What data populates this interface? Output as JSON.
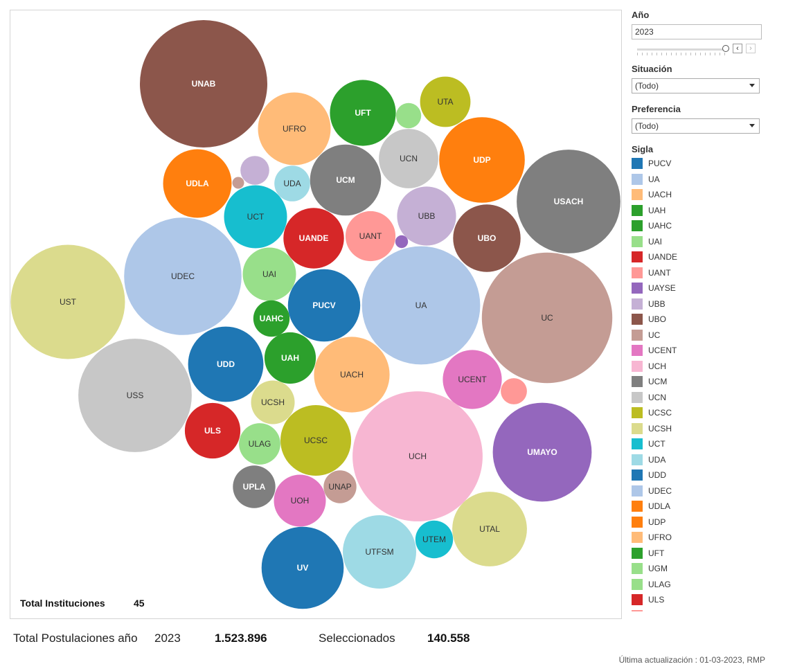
{
  "filters": {
    "year_title": "Año",
    "year_value": "2023",
    "step_prev": "‹",
    "step_next": "›",
    "situacion_title": "Situación",
    "situacion_value": "(Todo)",
    "preferencia_title": "Preferencia",
    "preferencia_value": "(Todo)",
    "sigla_title": "Sigla"
  },
  "legend": [
    {
      "label": "PUCV",
      "color": "#1f77b4"
    },
    {
      "label": "UA",
      "color": "#aec7e8"
    },
    {
      "label": "UACH",
      "color": "#ffbb78"
    },
    {
      "label": "UAH",
      "color": "#2ca02c"
    },
    {
      "label": "UAHC",
      "color": "#2ca02c"
    },
    {
      "label": "UAI",
      "color": "#98df8a"
    },
    {
      "label": "UANDE",
      "color": "#d62728"
    },
    {
      "label": "UANT",
      "color": "#ff9896"
    },
    {
      "label": "UAYSE",
      "color": "#9467bd"
    },
    {
      "label": "UBB",
      "color": "#c5b0d5"
    },
    {
      "label": "UBO",
      "color": "#8c564b"
    },
    {
      "label": "UC",
      "color": "#c49c94"
    },
    {
      "label": "UCENT",
      "color": "#e377c2"
    },
    {
      "label": "UCH",
      "color": "#f7b6d2"
    },
    {
      "label": "UCM",
      "color": "#7f7f7f"
    },
    {
      "label": "UCN",
      "color": "#c7c7c7"
    },
    {
      "label": "UCSC",
      "color": "#bcbd22"
    },
    {
      "label": "UCSH",
      "color": "#dbdb8d"
    },
    {
      "label": "UCT",
      "color": "#17becf"
    },
    {
      "label": "UDA",
      "color": "#9edae5"
    },
    {
      "label": "UDD",
      "color": "#1f77b4"
    },
    {
      "label": "UDEC",
      "color": "#aec7e8"
    },
    {
      "label": "UDLA",
      "color": "#ff7f0e"
    },
    {
      "label": "UDP",
      "color": "#ff7f0e"
    },
    {
      "label": "UFRO",
      "color": "#ffbb78"
    },
    {
      "label": "UFT",
      "color": "#2ca02c"
    },
    {
      "label": "UGM",
      "color": "#98df8a"
    },
    {
      "label": "ULAG",
      "color": "#98df8a"
    },
    {
      "label": "ULS",
      "color": "#d62728"
    },
    {
      "label": "",
      "color": "#ff9896"
    }
  ],
  "chart_data": {
    "type": "bubble",
    "encoding": "bubble area proportional to number of applications",
    "bubbles": [
      {
        "label": "UNAB",
        "color": "#8c564b",
        "value": 33200
      },
      {
        "label": "UFRO",
        "color": "#ffbb78",
        "value": 10800
      },
      {
        "label": "UFT",
        "color": "#2ca02c",
        "value": 8900
      },
      {
        "label": "UTA",
        "color": "#bcbd22",
        "value": 5200
      },
      {
        "label": "",
        "color": "#98df8a",
        "value": 1300
      },
      {
        "label": "UCN",
        "color": "#c7c7c7",
        "value": 7200
      },
      {
        "label": "UDP",
        "color": "#ff7f0e",
        "value": 15000
      },
      {
        "label": "USACH",
        "color": "#7f7f7f",
        "value": 22000
      },
      {
        "label": "UDLA",
        "color": "#ff7f0e",
        "value": 9600
      },
      {
        "label": "",
        "color": "#c5b0d5",
        "value": 1700
      },
      {
        "label": "",
        "color": "#c49c94",
        "value": 280
      },
      {
        "label": "UDA",
        "color": "#9edae5",
        "value": 2600
      },
      {
        "label": "UCM",
        "color": "#7f7f7f",
        "value": 10300
      },
      {
        "label": "UBB",
        "color": "#c5b0d5",
        "value": 7100
      },
      {
        "label": "UBO",
        "color": "#8c564b",
        "value": 9300
      },
      {
        "label": "UCT",
        "color": "#17becf",
        "value": 8100
      },
      {
        "label": "UANDE",
        "color": "#d62728",
        "value": 7500
      },
      {
        "label": "UANT",
        "color": "#ff9896",
        "value": 5100
      },
      {
        "label": "",
        "color": "#9467bd",
        "value": 330
      },
      {
        "label": "UDEC",
        "color": "#aec7e8",
        "value": 28200
      },
      {
        "label": "UAI",
        "color": "#98df8a",
        "value": 5800
      },
      {
        "label": "UST",
        "color": "#dbdb8d",
        "value": 26700
      },
      {
        "label": "PUCV",
        "color": "#1f77b4",
        "value": 10700
      },
      {
        "label": "UA",
        "color": "#aec7e8",
        "value": 28600
      },
      {
        "label": "UC",
        "color": "#c49c94",
        "value": 34800
      },
      {
        "label": "UAHC",
        "color": "#2ca02c",
        "value": 2700
      },
      {
        "label": "UDD",
        "color": "#1f77b4",
        "value": 11600
      },
      {
        "label": "UAH",
        "color": "#2ca02c",
        "value": 5400
      },
      {
        "label": "UACH",
        "color": "#ffbb78",
        "value": 11700
      },
      {
        "label": "UCENT",
        "color": "#e377c2",
        "value": 7100
      },
      {
        "label": "",
        "color": "#ff9896",
        "value": 1400
      },
      {
        "label": "USS",
        "color": "#c7c7c7",
        "value": 26300
      },
      {
        "label": "UCSH",
        "color": "#dbdb8d",
        "value": 3900
      },
      {
        "label": "ULS",
        "color": "#d62728",
        "value": 6300
      },
      {
        "label": "UCSC",
        "color": "#bcbd22",
        "value": 10200
      },
      {
        "label": "ULAG",
        "color": "#98df8a",
        "value": 3500
      },
      {
        "label": "UCH",
        "color": "#f7b6d2",
        "value": 34600
      },
      {
        "label": "UMAYO",
        "color": "#9467bd",
        "value": 20000
      },
      {
        "label": "UPLA",
        "color": "#7f7f7f",
        "value": 3700
      },
      {
        "label": "UOH",
        "color": "#e377c2",
        "value": 5500
      },
      {
        "label": "UNAP",
        "color": "#c49c94",
        "value": 2200
      },
      {
        "label": "UV",
        "color": "#1f77b4",
        "value": 13800
      },
      {
        "label": "UTFSM",
        "color": "#9edae5",
        "value": 11000
      },
      {
        "label": "UTEM",
        "color": "#17becf",
        "value": 2900
      },
      {
        "label": "UTAL",
        "color": "#dbdb8d",
        "value": 11400
      }
    ]
  },
  "summary": {
    "total_inst_label": "Total Instituciones",
    "total_inst_value": "45",
    "postulaciones_label": "Total Postulaciones año",
    "postulaciones_year": "2023",
    "postulaciones_value": "1.523.896",
    "seleccionados_label": "Seleccionados",
    "seleccionados_value": "140.558",
    "updated": "Última actualización : 01-03-2023, RMP"
  }
}
